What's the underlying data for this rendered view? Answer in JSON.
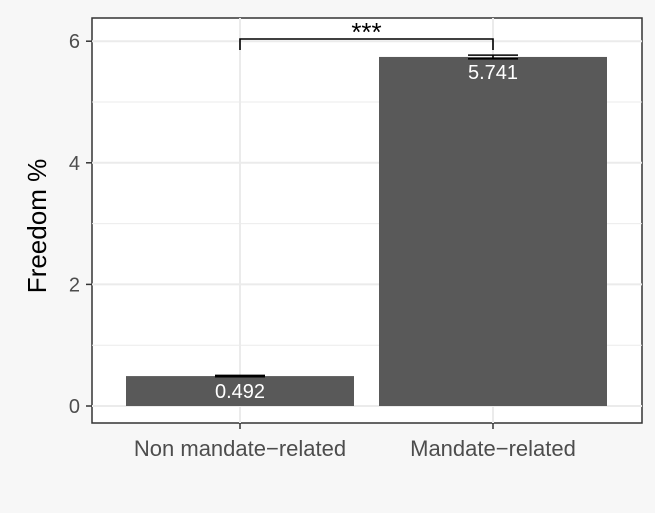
{
  "chart_data": {
    "type": "bar",
    "categories": [
      "Non mandate−related",
      "Mandate−related"
    ],
    "values": [
      0.492,
      5.741
    ],
    "value_labels": [
      "0.492",
      "5.741"
    ],
    "errors": [
      0.01,
      0.03
    ],
    "xlabel": "",
    "ylabel": "Freedom %",
    "ylim": [
      0,
      6.3
    ],
    "yticks": [
      0,
      2,
      4,
      6
    ],
    "ytick_labels": [
      "0",
      "2",
      "4",
      "6"
    ],
    "grid": true,
    "significance": {
      "between": [
        0,
        1
      ],
      "label": "***"
    },
    "colors": {
      "bar": "#595959",
      "panel": "#ffffff",
      "grid": "#ebebeb",
      "outer": "#f7f7f7"
    }
  }
}
